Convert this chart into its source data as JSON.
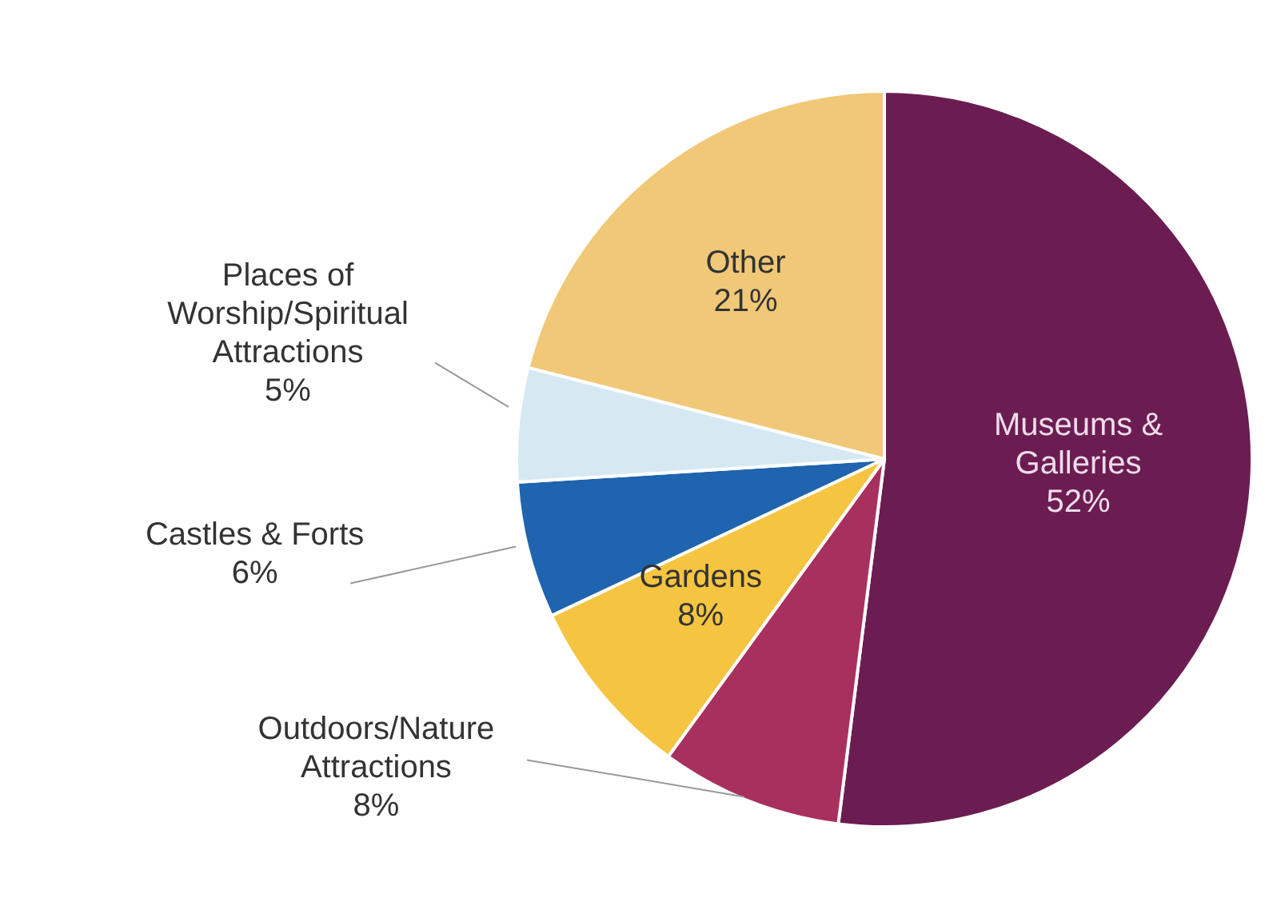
{
  "chart_data": {
    "type": "pie",
    "categories": [
      "Museums & Galleries",
      "Outdoors/Nature Attractions",
      "Gardens",
      "Castles & Forts",
      "Places of Worship/Spiritual Attractions",
      "Other"
    ],
    "values": [
      52,
      8,
      8,
      6,
      5,
      21
    ],
    "value_labels": [
      "52%",
      "8%",
      "8%",
      "6%",
      "5%",
      "21%"
    ],
    "colors": [
      "#6b1d52",
      "#a8305f",
      "#f5c542",
      "#1f64ae",
      "#d6e9f3",
      "#f0c878"
    ]
  }
}
